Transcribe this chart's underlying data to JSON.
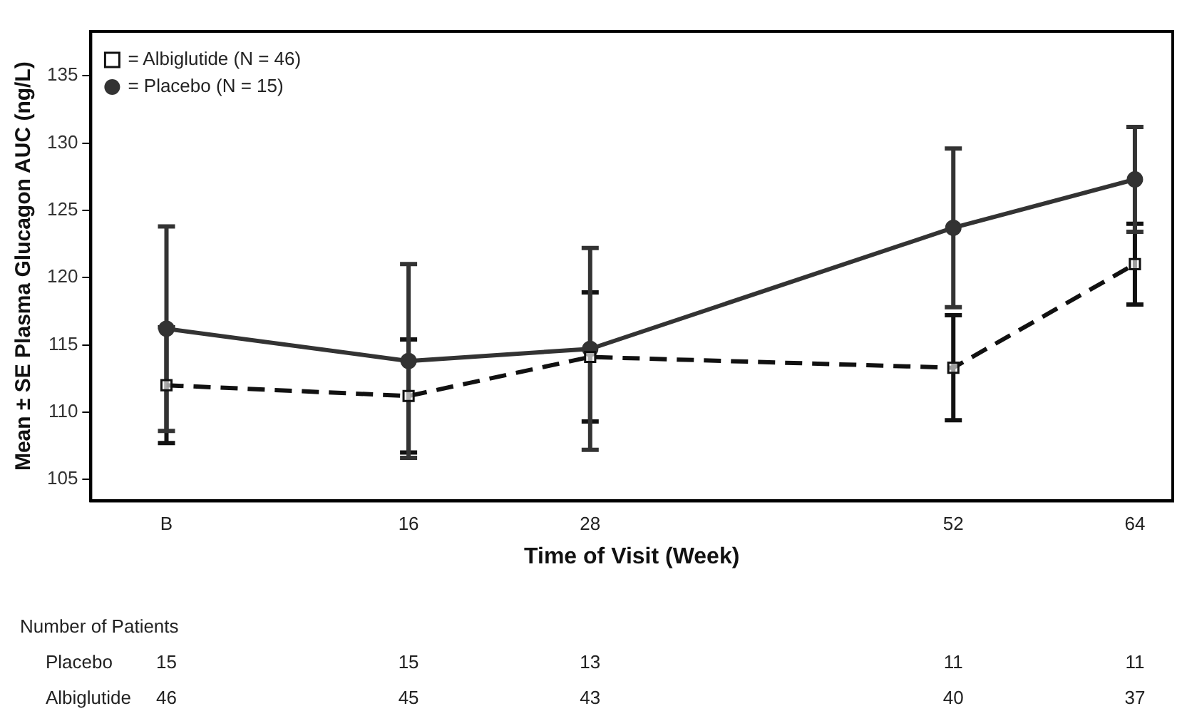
{
  "chart_data": {
    "type": "line",
    "xlabel": "Time of Visit (Week)",
    "ylabel": "Mean ± SE Plasma Glucagon AUC (ng/L)",
    "x": [
      0,
      16,
      28,
      52,
      64
    ],
    "xlim": [
      -5,
      66.5
    ],
    "xticks": [
      {
        "value": 0,
        "label": "B"
      },
      16,
      28,
      52,
      64
    ],
    "ylim": [
      103.4,
      138.3
    ],
    "yticks": [
      105,
      110,
      115,
      120,
      125,
      130,
      135
    ],
    "grid": false,
    "legend": "top left",
    "series": [
      {
        "name": "= Albiglutide (N = 46)",
        "color": "#111111",
        "marker": "square",
        "line_style": "dashed",
        "values": [
          112,
          111.2,
          114.1,
          113.3,
          121.0
        ],
        "errors": [
          4.3,
          4.2,
          4.8,
          3.9,
          3.0
        ]
      },
      {
        "name": "= Placebo (N = 15)",
        "color": "#333333",
        "marker": "circle",
        "line_style": "solid",
        "values": [
          116.2,
          113.8,
          114.7,
          123.7,
          127.3
        ],
        "errors": [
          7.6,
          7.2,
          7.5,
          5.9,
          3.9
        ]
      }
    ],
    "annotations": [
      "Number of Patients",
      "Placebo",
      "15",
      "15",
      "13",
      "11",
      "11",
      "Albiglutide",
      "46",
      "45",
      "43",
      "40",
      "37"
    ]
  }
}
